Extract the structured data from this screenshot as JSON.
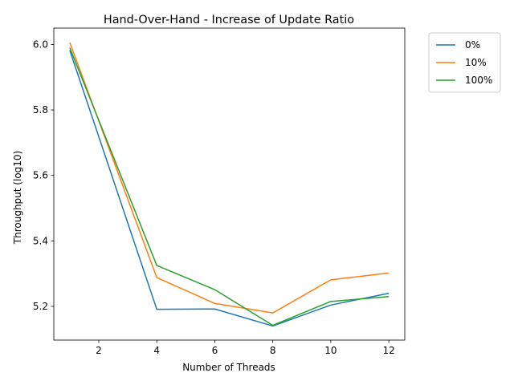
{
  "chart_data": {
    "type": "line",
    "title": "Hand-Over-Hand - Increase of Update Ratio",
    "xlabel": "Number of Threads",
    "ylabel": "Throughput (log10)",
    "xlim": [
      0.45,
      12.55
    ],
    "ylim": [
      5.097,
      6.05
    ],
    "xticks": [
      2,
      4,
      6,
      8,
      10,
      12
    ],
    "yticks": [
      5.2,
      5.4,
      5.6,
      5.8,
      6.0
    ],
    "x": [
      1,
      4,
      6,
      8,
      10,
      12
    ],
    "series": [
      {
        "name": "0%",
        "color": "#1f77b4",
        "values": [
          5.982,
          5.191,
          5.192,
          5.14,
          5.204,
          5.24
        ]
      },
      {
        "name": "10%",
        "color": "#ff7f0e",
        "values": [
          6.006,
          5.288,
          5.209,
          5.18,
          5.281,
          5.302
        ]
      },
      {
        "name": "100%",
        "color": "#2ca02c",
        "values": [
          5.99,
          5.325,
          5.251,
          5.142,
          5.215,
          5.23
        ]
      }
    ],
    "legend": "outside-top-right",
    "grid": false
  }
}
